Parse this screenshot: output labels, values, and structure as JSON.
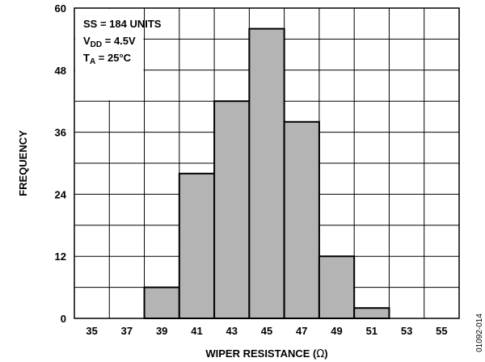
{
  "chart_data": {
    "type": "bar",
    "categories": [
      "35",
      "37",
      "39",
      "41",
      "43",
      "45",
      "47",
      "49",
      "51",
      "53",
      "55"
    ],
    "values": [
      0,
      0,
      6,
      28,
      42,
      56,
      38,
      12,
      2,
      0,
      0
    ],
    "xlabel_main": "WIPER RESISTANCE (",
    "xlabel_symbol": "Ω",
    "xlabel_end": ")",
    "ylabel": "FREQUENCY",
    "ylim": [
      0,
      60
    ],
    "yticks": [
      "0",
      "12",
      "24",
      "36",
      "48",
      "60"
    ],
    "ytick_values": [
      0,
      12,
      24,
      36,
      48,
      60
    ],
    "grid": true,
    "bar_color": "#b4b4b4",
    "annotation": {
      "line1": "SS = 184 UNITS",
      "line2_main": "V",
      "line2_sub": "DD",
      "line2_rest": " = 4.5V",
      "line3_main": "T",
      "line3_sub": "A",
      "line3_rest": " = 25°C"
    },
    "figure_id": "01092-014"
  }
}
